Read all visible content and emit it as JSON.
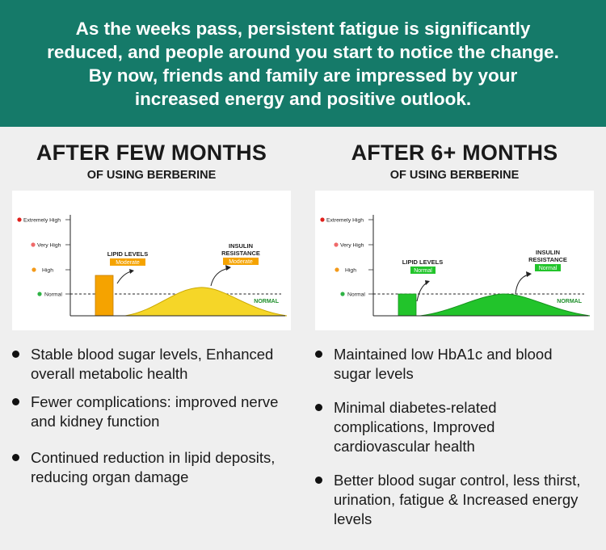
{
  "banner": {
    "lines": [
      "As the weeks pass, persistent fatigue is significantly",
      "reduced, and people around you start to notice the change.",
      "By now, friends and family are impressed by your",
      "increased energy and positive outlook."
    ]
  },
  "levels": {
    "extremely_high": "Extremely High",
    "very_high": "Very High",
    "high": "High",
    "normal": "Normal"
  },
  "colors": {
    "banner": "#157a69",
    "extremely_high": "#e0201b",
    "very_high": "#ef6a6a",
    "high": "#f39a1a",
    "normal": "#2fb345",
    "moderate": "#f5a300",
    "normal_fill": "#22c42b"
  },
  "left": {
    "title": "AFTER FEW MONTHS",
    "subtitle": "OF USING BERBERINE",
    "chart": {
      "baseline_label": "NORMAL",
      "lipid_label": "LIPID LEVELS",
      "lipid_status": "Moderate",
      "insulin_label_1": "INSULIN",
      "insulin_label_2": "RESISTANCE",
      "insulin_status": "Moderate",
      "lipid_level": "High",
      "insulin_level": "Between Normal and High"
    },
    "bullets": [
      "Stable blood sugar levels, Enhanced overall metabolic health",
      "Fewer complications: improved nerve and kidney function",
      "Continued reduction in lipid deposits, reducing organ damage"
    ]
  },
  "right": {
    "title": "AFTER 6+ MONTHS",
    "subtitle": "OF USING BERBERINE",
    "chart": {
      "baseline_label": "NORMAL",
      "lipid_label": "LIPID LEVELS",
      "lipid_status": "Normal",
      "insulin_label_1": "INSULIN",
      "insulin_label_2": "RESISTANCE",
      "insulin_status": "Normal",
      "lipid_level": "Normal",
      "insulin_level": "Normal"
    },
    "bullets": [
      "Maintained low HbA1c and blood sugar levels",
      "Minimal diabetes-related complications, Improved cardiovascular health",
      "Better blood sugar control, less thirst, urination, fatigue & Increased energy levels"
    ]
  }
}
